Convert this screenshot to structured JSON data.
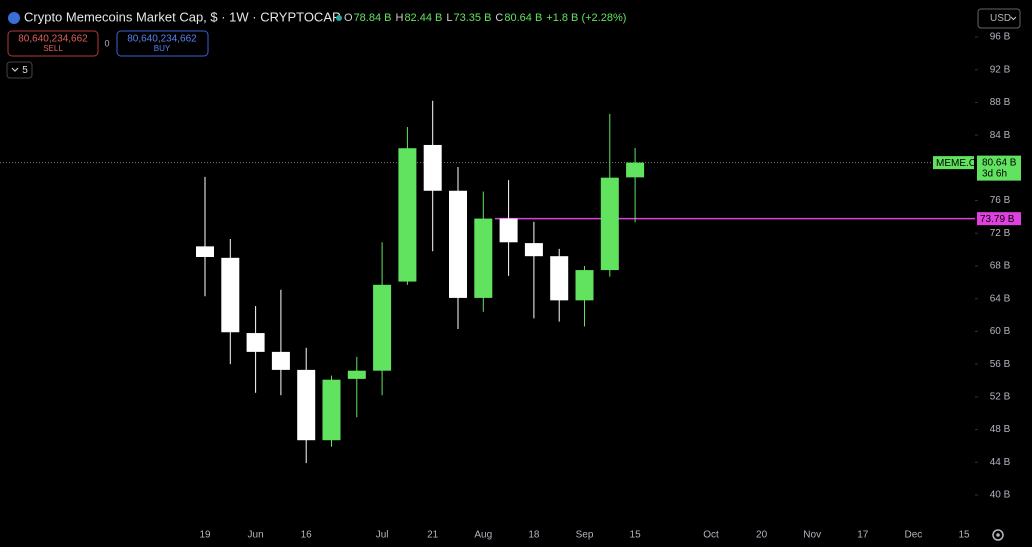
{
  "header": {
    "title": "Crypto Memecoins Market Cap, $ · 1W · CRYPTOCAP",
    "legend": [
      {
        "label": "O",
        "value": "78.84 B"
      },
      {
        "label": "H",
        "value": "82.44 B"
      },
      {
        "label": "L",
        "value": "73.35 B"
      },
      {
        "label": "C",
        "value": "80.64 B"
      }
    ],
    "change": "+1.8 B (+2.28%)",
    "sell": {
      "price": "80,640,234,662",
      "label": "SELL"
    },
    "spread": "0",
    "buy": {
      "price": "80,640,234,662",
      "label": "BUY"
    },
    "indicators": "5",
    "currency": "USD"
  },
  "price_tag": {
    "symbol": "MEME.C",
    "value": "80.64 B",
    "countdown": "3d 6h"
  },
  "alert_line": {
    "value": 73.79,
    "label": "73.79 B",
    "color": "#e040e0"
  },
  "chart_data": {
    "type": "candlestick",
    "categories": [
      "19",
      null,
      "Jun",
      null,
      "16",
      null,
      null,
      "Jul",
      null,
      "21",
      null,
      "Aug",
      null,
      "18",
      null,
      "Sep",
      null,
      "15",
      null,
      null,
      "Oct",
      null,
      "20",
      null,
      "Nov",
      null,
      "17",
      null,
      "Dec",
      null,
      "15"
    ],
    "open": [
      70.4,
      69.0,
      59.8,
      57.5,
      55.3,
      46.7,
      54.2,
      55.2,
      66.1,
      82.8,
      77.2,
      64.1,
      73.8,
      70.8,
      69.2,
      63.8,
      67.5,
      78.84,
      null,
      null,
      null,
      null,
      null,
      null,
      null,
      null,
      null,
      null,
      null,
      null,
      null
    ],
    "high": [
      78.9,
      71.3,
      63.1,
      65.1,
      58.0,
      54.6,
      56.9,
      70.9,
      85.0,
      88.2,
      80.1,
      77.1,
      78.5,
      73.4,
      70.1,
      68.0,
      86.6,
      82.44,
      null,
      null,
      null,
      null,
      null,
      null,
      null,
      null,
      null,
      null,
      null,
      null,
      null
    ],
    "low": [
      64.3,
      56.0,
      52.5,
      52.2,
      43.9,
      45.9,
      49.5,
      52.2,
      65.7,
      69.8,
      60.3,
      62.4,
      66.8,
      61.6,
      61.2,
      60.6,
      66.7,
      73.35,
      null,
      null,
      null,
      null,
      null,
      null,
      null,
      null,
      null,
      null,
      null,
      null,
      null
    ],
    "close": [
      69.1,
      59.9,
      57.5,
      55.3,
      46.7,
      54.1,
      55.2,
      65.7,
      82.4,
      77.2,
      64.1,
      73.8,
      70.9,
      69.2,
      63.8,
      67.5,
      78.8,
      80.64,
      null,
      null,
      null,
      null,
      null,
      null,
      null,
      null,
      null,
      null,
      null,
      null,
      null
    ],
    "up_color": "#62e35f",
    "down_color": "#ffffff",
    "ylim": [
      36.7,
      97.1
    ],
    "yticks": [
      {
        "value": 40,
        "label": "40 B"
      },
      {
        "value": 44,
        "label": "44 B"
      },
      {
        "value": 48,
        "label": "48 B"
      },
      {
        "value": 52,
        "label": "52 B"
      },
      {
        "value": 56,
        "label": "56 B"
      },
      {
        "value": 60,
        "label": "60 B"
      },
      {
        "value": 64,
        "label": "64 B"
      },
      {
        "value": 68,
        "label": "68 B"
      },
      {
        "value": 72,
        "label": "72 B"
      },
      {
        "value": 76,
        "label": "76 B"
      },
      {
        "value": 84,
        "label": "84 B"
      },
      {
        "value": 88,
        "label": "88 B"
      },
      {
        "value": 92,
        "label": "92 B"
      },
      {
        "value": 96,
        "label": "96 B"
      }
    ]
  }
}
